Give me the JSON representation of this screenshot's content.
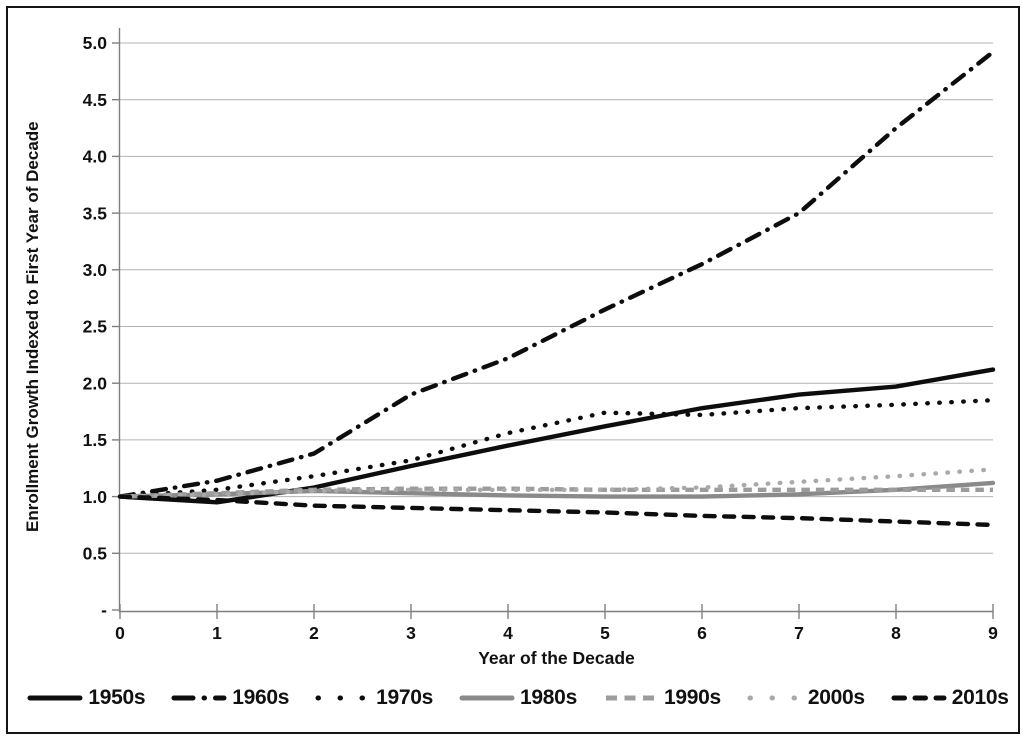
{
  "chart_data": {
    "type": "line",
    "title": "",
    "xlabel": "Year of the Decade",
    "ylabel": "Enrollment Growth Indexed to First Year of Decade",
    "x": [
      0,
      1,
      2,
      3,
      4,
      5,
      6,
      7,
      8,
      9
    ],
    "xlim": [
      0,
      9
    ],
    "ylim": [
      0,
      5
    ],
    "x_tick_labels": [
      "0",
      "1",
      "2",
      "3",
      "4",
      "5",
      "6",
      "7",
      "8",
      "9"
    ],
    "y_tick_labels": [
      "-",
      "0.5",
      "1.0",
      "1.5",
      "2.0",
      "2.5",
      "3.0",
      "3.5",
      "4.0",
      "4.5",
      "5.0"
    ],
    "grid": "horizontal",
    "legend_position": "bottom",
    "series": [
      {
        "name": "1950s",
        "color": "#0d0d0d",
        "line_style": "solid",
        "values": [
          1.0,
          0.95,
          1.08,
          1.27,
          1.45,
          1.62,
          1.78,
          1.9,
          1.97,
          2.12
        ]
      },
      {
        "name": "1960s",
        "color": "#0d0d0d",
        "line_style": "dash-dot",
        "values": [
          1.0,
          1.14,
          1.38,
          1.9,
          2.22,
          2.65,
          3.05,
          3.5,
          4.25,
          4.92
        ]
      },
      {
        "name": "1970s",
        "color": "#0d0d0d",
        "line_style": "dot",
        "values": [
          1.0,
          1.06,
          1.18,
          1.32,
          1.56,
          1.74,
          1.72,
          1.78,
          1.81,
          1.85
        ]
      },
      {
        "name": "1980s",
        "color": "#8a8a8a",
        "line_style": "solid",
        "values": [
          1.0,
          1.02,
          1.05,
          1.03,
          1.01,
          1.0,
          1.0,
          1.02,
          1.06,
          1.12
        ]
      },
      {
        "name": "1990s",
        "color": "#9c9c9c",
        "line_style": "dash",
        "values": [
          1.0,
          1.03,
          1.06,
          1.07,
          1.07,
          1.06,
          1.06,
          1.06,
          1.06,
          1.06
        ]
      },
      {
        "name": "2000s",
        "color": "#a9a9a9",
        "line_style": "dot",
        "values": [
          1.0,
          1.02,
          1.05,
          1.06,
          1.06,
          1.06,
          1.08,
          1.13,
          1.18,
          1.24
        ]
      },
      {
        "name": "2010s",
        "color": "#0d0d0d",
        "line_style": "dash-round",
        "values": [
          1.0,
          0.97,
          0.92,
          0.9,
          0.88,
          0.86,
          0.83,
          0.81,
          0.78,
          0.75
        ]
      }
    ]
  }
}
